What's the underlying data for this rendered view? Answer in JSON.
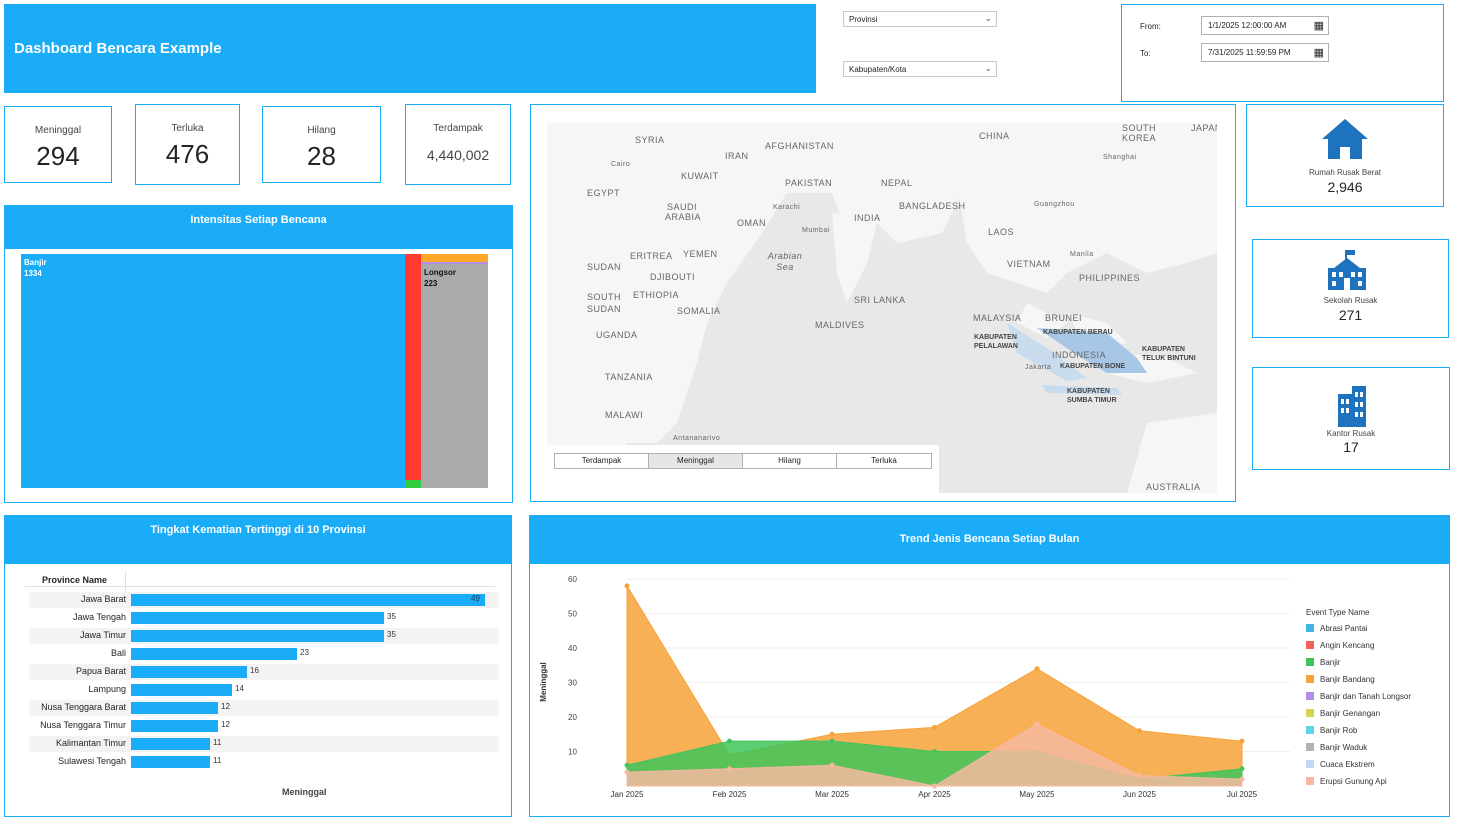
{
  "header": {
    "title": "Dashboard Bencara Example"
  },
  "filters": {
    "provinsi": "Provinsi",
    "kabupaten": "Kabupaten/Kota",
    "from_label": "From:",
    "from_value": "1/1/2025 12:00:00 AM",
    "to_label": "To:",
    "to_value": "7/31/2025 11:59:59 PM"
  },
  "kpis": [
    {
      "label": "Meninggal",
      "value": "294"
    },
    {
      "label": "Terluka",
      "value": "476"
    },
    {
      "label": "Hilang",
      "value": "28"
    },
    {
      "label": "Terdampak",
      "value": "4,440,002"
    }
  ],
  "side_cards": [
    {
      "label": "Rumah Rusak Berat",
      "value": "2,946",
      "icon": "house-icon"
    },
    {
      "label": "Sekolah Rusak",
      "value": "271",
      "icon": "school-icon"
    },
    {
      "label": "Kantor Rusak",
      "value": "17",
      "icon": "office-building-icon"
    }
  ],
  "treemap": {
    "title": "Intensitas Setiap Bencana",
    "banjir_label": "Banjir",
    "banjir_value": "1334",
    "longsor_label": "Longsor",
    "longsor_value": "223",
    "colors": {
      "banjir": "#1aacf7",
      "red": "#ff3b2f",
      "green": "#2ecc40",
      "orange": "#ffa726",
      "gray": "#aaaaaa"
    }
  },
  "map": {
    "tabs": [
      "Terdampak",
      "Meninggal",
      "Hilang",
      "Terluka"
    ],
    "active_tab": "Meninggal",
    "labels": {
      "syria": "SYRIA",
      "iran": "IRAN",
      "afghanistan": "AFGHANISTAN",
      "china": "CHINA",
      "south_korea": "SOUTH KOREA",
      "japan": "JAPAN",
      "cairo": "Cairo",
      "kuwait": "KUWAIT",
      "pakistan": "PAKISTAN",
      "nepal": "NEPAL",
      "shanghai": "Shanghai",
      "egypt": "EGYPT",
      "saudi": "SAUDI",
      "arabia": "ARABIA",
      "karachi": "Karachi",
      "india": "INDIA",
      "bangladesh": "BANGLADESH",
      "guangzhou": "Guangzhou",
      "oman": "OMAN",
      "mumbai": "Mumbai",
      "laos": "LAOS",
      "sudan": "SUDAN",
      "eritrea": "ERITREA",
      "yemen": "YEMEN",
      "arabian_sea": "Arabian Sea",
      "manila": "Manila",
      "djibouti": "DJIBOUTI",
      "vietnam": "VIETNAM",
      "philippines": "PHILIPPINES",
      "south_sudan": "SOUTH SUDAN",
      "ethiopia": "ETHIOPIA",
      "sri_lanka": "SRI LANKA",
      "somalia": "SOMALIA",
      "brunei": "BRUNEI",
      "malaysia": "MALAYSIA",
      "maldives": "MALDIVES",
      "kab_berau": "KABUPATEN BERAU",
      "uganda": "UGANDA",
      "kab_pelalawan": "KABUPATEN PELALAWAN",
      "indonesia": "INDONESIA",
      "kab_teluk": "KABUPATEN TELUK BINTUNI",
      "jakarta": "Jakarta",
      "kab_bone": "KABUPATEN BONE",
      "tanzania": "TANZANIA",
      "kab_sumba": "KABUPATEN SUMBA TIMUR",
      "malawi": "MALAWI",
      "antananarivo": "Antananarivo",
      "australia": "AUSTRALIA"
    }
  },
  "province_chart": {
    "title": "Tingkat Kematian Tertinggi di 10 Provinsi",
    "column_header": "Province Name",
    "xlabel": "Meninggal",
    "rows": [
      {
        "name": "Jawa Barat",
        "value": 49
      },
      {
        "name": "Jawa Tengah",
        "value": 35
      },
      {
        "name": "Jawa Timur",
        "value": 35
      },
      {
        "name": "Bali",
        "value": 23
      },
      {
        "name": "Papua Barat",
        "value": 16
      },
      {
        "name": "Lampung",
        "value": 14
      },
      {
        "name": "Nusa Tenggara Barat",
        "value": 12
      },
      {
        "name": "Nusa Tenggara Timur",
        "value": 12
      },
      {
        "name": "Kalimantan Timur",
        "value": 11
      },
      {
        "name": "Sulawesi Tengah",
        "value": 11
      }
    ]
  },
  "chart_data": {
    "type": "area",
    "title": "Trend Jenis Bencana Setiap Bulan",
    "ylabel": "Meninggal",
    "xlabel": "",
    "legend_title": "Event Type Name",
    "x": [
      "Jan 2025",
      "Feb 2025",
      "Mar 2025",
      "Apr 2025",
      "May 2025",
      "Jun 2025",
      "Jul 2025"
    ],
    "ylim": [
      0,
      60
    ],
    "yticks": [
      10,
      20,
      30,
      40,
      50,
      60
    ],
    "series": [
      {
        "name": "Abrasi Pantai",
        "color": "#41b6e6",
        "values": [
          0,
          0,
          0,
          0,
          0,
          0,
          0
        ]
      },
      {
        "name": "Angin Kencang",
        "color": "#f0605d",
        "values": [
          0,
          0,
          0,
          0,
          0,
          0,
          0
        ]
      },
      {
        "name": "Banjir",
        "color": "#3fc55a",
        "values": [
          6,
          13,
          13,
          10,
          10,
          2,
          5
        ]
      },
      {
        "name": "Banjir Bandang",
        "color": "#f7a239",
        "values": [
          58,
          9,
          15,
          17,
          34,
          16,
          13
        ]
      },
      {
        "name": "Banjir dan Tanah Longsor",
        "color": "#b18ce8",
        "values": [
          0,
          0,
          0,
          0,
          0,
          0,
          0
        ]
      },
      {
        "name": "Banjir Genangan",
        "color": "#d6d64a",
        "values": [
          0,
          0,
          0,
          0,
          0,
          0,
          0
        ]
      },
      {
        "name": "Banjir Rob",
        "color": "#5fd4e8",
        "values": [
          0,
          0,
          0,
          0,
          0,
          0,
          0
        ]
      },
      {
        "name": "Banjir Waduk",
        "color": "#b3b3b3",
        "values": [
          0,
          0,
          0,
          0,
          0,
          0,
          0
        ]
      },
      {
        "name": "Cuaca Ekstrem",
        "color": "#bfd7f2",
        "values": [
          0,
          0,
          0,
          0,
          0,
          0,
          0
        ]
      },
      {
        "name": "Erupsi Gunung Api",
        "color": "#f6b9a0",
        "values": [
          4,
          5,
          6,
          0,
          18,
          3,
          2
        ]
      }
    ],
    "grid": true,
    "legend_position": "right"
  }
}
